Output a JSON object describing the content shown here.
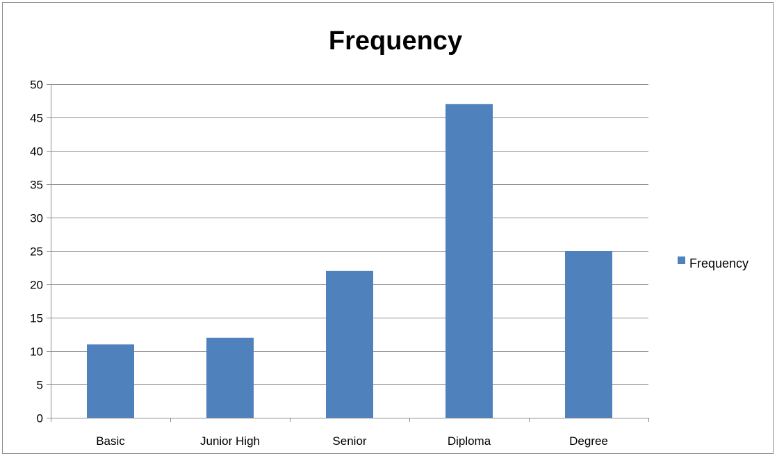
{
  "chart_data": {
    "type": "bar",
    "title": "Frequency",
    "categories": [
      "Basic",
      "Junior High",
      "Senior",
      "Diploma",
      "Degree"
    ],
    "series": [
      {
        "name": "Frequency",
        "values": [
          11,
          12,
          22,
          47,
          25
        ],
        "color": "#4f81bd"
      }
    ],
    "ylim": [
      0,
      50
    ],
    "yticks": [
      "0",
      "5",
      "10",
      "15",
      "20",
      "25",
      "30",
      "35",
      "40",
      "45",
      "50"
    ],
    "grid": true,
    "legend_position": "right"
  }
}
